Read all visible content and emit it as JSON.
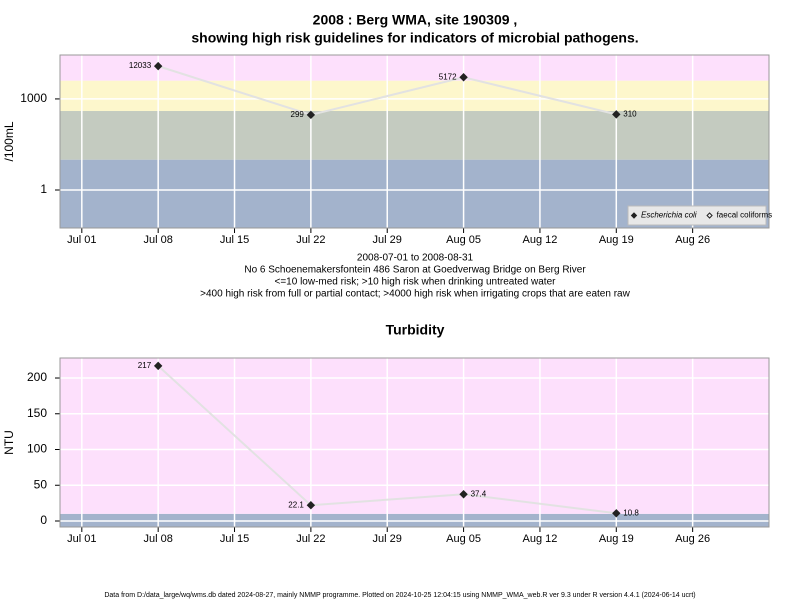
{
  "chart_data": [
    {
      "type": "line",
      "title": "2008 : Berg WMA, site 190309 ,",
      "subtitle": "showing high risk guidelines for indicators of microbial pathogens.",
      "y_label": "/100mL",
      "y_log": true,
      "grid": true,
      "legend": "bottom-right",
      "x": [
        "Jul 08",
        "Jul 22",
        "Aug 05",
        "Aug 19"
      ],
      "xlim": [
        "Jun 29",
        "Sep 02"
      ],
      "xticks": [
        "Jul 01",
        "Jul 08",
        "Jul 15",
        "Jul 22",
        "Jul 29",
        "Aug 05",
        "Aug 12",
        "Aug 19",
        "Aug 26"
      ],
      "ylim": [
        0.056,
        28000
      ],
      "yticks": [
        1,
        1000
      ],
      "band_breaks": [
        10,
        400,
        4000
      ],
      "band_colors": [
        "#a3b3cc",
        "#c4cbc0",
        "#fdf7cc",
        "#fde0fc"
      ],
      "line_color": "#e2e2e2",
      "series": [
        {
          "name": "Escherichia coli",
          "color": "#222222",
          "marker": "filled",
          "values": [
            12033,
            299,
            5172,
            310
          ]
        },
        {
          "name": "faecal coliforms",
          "color": "#222222",
          "marker": "open",
          "values": [
            null,
            null,
            null,
            null
          ]
        }
      ],
      "notes": [
        "2008-07-01 to 2008-08-31",
        "No 6 Schoenemakersfontein 486 Saron at Goedverwag Bridge on Berg River",
        "<=10 low-med risk; >10 high risk when drinking untreated water",
        ">400 high risk from full or partial contact; >4000 high risk when irrigating crops that are eaten raw"
      ]
    },
    {
      "type": "line",
      "title": "Turbidity",
      "y_label": "NTU",
      "y_log": false,
      "grid": true,
      "x": [
        "Jul 08",
        "Jul 22",
        "Aug 05",
        "Aug 19"
      ],
      "xlim": [
        "Jun 29",
        "Sep 02"
      ],
      "xticks": [
        "Jul 01",
        "Jul 08",
        "Jul 15",
        "Jul 22",
        "Jul 29",
        "Aug 05",
        "Aug 12",
        "Aug 19",
        "Aug 26"
      ],
      "ylim": [
        -8.4,
        228
      ],
      "yticks": [
        0,
        50,
        100,
        150,
        200
      ],
      "band_breaks": [
        10
      ],
      "band_colors": [
        "#a3b3cc",
        "#fde0fc"
      ],
      "line_color": "#e2e2e2",
      "series": [
        {
          "name": "Turbidity",
          "color": "#222222",
          "marker": "filled",
          "values": [
            217,
            22.1,
            37.4,
            10.8
          ]
        }
      ]
    }
  ],
  "footer": "Data from D:/data_large/wq/wms.db dated 2024-08-27, mainly NMMP programme. Plotted on 2024-10-25 12:04:15 using NMMP_WMA_web.R ver 9.3 under R version 4.4.1 (2024-06-14 ucrt)"
}
